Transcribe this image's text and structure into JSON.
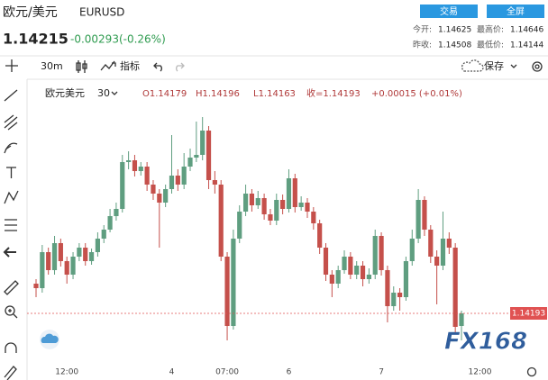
{
  "header": {
    "title": "欧元/美元",
    "symbol": "EURUSD",
    "buttons": [
      "交易",
      "全屏"
    ],
    "price": "1.14215",
    "change": "-0.00293(-0.26%)",
    "stats": [
      [
        "今开:",
        "1.14625",
        "最高价:",
        "1.14646"
      ],
      [
        "昨收:",
        "1.14508",
        "最低价:",
        "1.14144"
      ]
    ]
  },
  "toolbar": {
    "interval": "30m",
    "indicators": "指标",
    "save": "保存"
  },
  "legend": {
    "name": "欧元美元",
    "interval": "30",
    "open": "O1.14179",
    "high": "H1.14196",
    "low": "L1.14163",
    "close": "收=1.14193",
    "change": "+0.00015 (+0.01%)"
  },
  "watermark": "FX168",
  "chart_data": {
    "type": "candlestick",
    "categories": [
      null,
      null,
      null,
      null,
      null,
      "12:00",
      null,
      null,
      null,
      null,
      null,
      null,
      null,
      null,
      null,
      null,
      null,
      null,
      null,
      null,
      null,
      null,
      "4",
      null,
      null,
      null,
      null,
      null,
      null,
      null,
      null,
      "07:00",
      null,
      null,
      null,
      null,
      null,
      null,
      null,
      null,
      null,
      "6",
      null,
      null,
      null,
      null,
      null,
      null,
      null,
      null,
      null,
      null,
      null,
      null,
      null,
      null,
      "7",
      null,
      null,
      null,
      null,
      null,
      null,
      null,
      null,
      null,
      null,
      null,
      null,
      null,
      null,
      null,
      "12:00",
      null
    ],
    "open": [
      1.14226,
      1.14221,
      1.14261,
      1.14241,
      1.14271,
      1.14251,
      1.14236,
      1.14256,
      1.14266,
      1.14251,
      1.14261,
      1.14276,
      1.14286,
      1.14301,
      1.14309,
      1.14361,
      1.14363,
      1.14351,
      1.14356,
      1.14336,
      1.14326,
      1.14316,
      1.14331,
      1.14346,
      1.14336,
      1.14356,
      1.14366,
      1.14369,
      1.14396,
      1.14341,
      1.14336,
      1.14256,
      1.14179,
      1.14276,
      1.14306,
      1.14326,
      1.14313,
      1.14321,
      1.14303,
      1.14296,
      1.14319,
      1.14309,
      1.14343,
      1.14311,
      1.14316,
      1.14306,
      1.14293,
      1.14266,
      1.14236,
      1.14226,
      1.14241,
      1.14256,
      1.14236,
      1.14246,
      1.14231,
      1.14236,
      1.14279,
      1.14241,
      1.14201,
      1.14216,
      1.14211,
      1.14251,
      1.14276,
      1.14319,
      1.14286,
      1.14256,
      1.14246,
      1.14276,
      1.14266,
      1.14179,
      null,
      null,
      null,
      null
    ],
    "high": [
      1.14231,
      1.14269,
      1.14266,
      1.14279,
      1.14276,
      1.14256,
      1.14261,
      1.14271,
      1.14271,
      1.14265,
      1.14283,
      1.14291,
      1.14309,
      1.14316,
      1.14369,
      1.14373,
      1.14369,
      1.14361,
      1.14361,
      1.14341,
      1.14331,
      1.14336,
      1.14391,
      1.14353,
      1.14371,
      1.14376,
      1.14406,
      1.14411,
      1.14401,
      1.14351,
      1.14341,
      1.14261,
      1.14286,
      1.14313,
      1.14336,
      1.14331,
      1.14329,
      1.14326,
      1.14309,
      1.14326,
      1.14325,
      1.14353,
      1.14348,
      1.14323,
      1.14321,
      1.14311,
      1.14297,
      1.14271,
      1.14241,
      1.14246,
      1.14263,
      1.14261,
      1.14251,
      1.14251,
      1.14243,
      1.14286,
      1.14283,
      1.14246,
      1.14223,
      1.14221,
      1.14256,
      1.14286,
      1.14331,
      1.14323,
      1.14291,
      1.14263,
      1.14306,
      1.14283,
      1.14271,
      1.14196,
      null,
      null,
      null,
      null
    ],
    "low": [
      1.14211,
      1.14216,
      1.14236,
      1.14236,
      1.14245,
      1.14226,
      1.14231,
      1.14251,
      1.14246,
      1.14247,
      1.14256,
      1.14271,
      1.14283,
      1.14296,
      1.14305,
      1.14353,
      1.14345,
      1.14346,
      1.14329,
      1.14319,
      1.14266,
      1.14311,
      1.14326,
      1.14329,
      1.14331,
      1.14351,
      1.14361,
      1.14363,
      1.14331,
      1.14326,
      1.14251,
      1.14163,
      1.14175,
      1.14271,
      1.14301,
      1.14306,
      1.14309,
      1.14297,
      1.14291,
      1.14291,
      1.14303,
      1.14305,
      1.14305,
      1.14307,
      1.14299,
      1.14286,
      1.14259,
      1.14229,
      1.14211,
      1.14221,
      1.14237,
      1.14231,
      1.14231,
      1.14223,
      1.14226,
      1.14231,
      1.14235,
      1.14183,
      1.14196,
      1.14196,
      1.14207,
      1.14246,
      1.14271,
      1.14279,
      1.14249,
      1.14203,
      1.14241,
      1.14259,
      1.14172,
      1.14163,
      null,
      null,
      null,
      null
    ],
    "close": [
      1.14221,
      1.14261,
      1.14241,
      1.14271,
      1.14251,
      1.14236,
      1.14256,
      1.14266,
      1.14251,
      1.14261,
      1.14276,
      1.14286,
      1.14301,
      1.14309,
      1.14361,
      1.14363,
      1.14351,
      1.14356,
      1.14336,
      1.14326,
      1.14316,
      1.14331,
      1.14346,
      1.14336,
      1.14356,
      1.14366,
      1.14369,
      1.14396,
      1.14341,
      1.14336,
      1.14256,
      1.14179,
      1.14276,
      1.14306,
      1.14326,
      1.14313,
      1.14321,
      1.14303,
      1.14296,
      1.14319,
      1.14309,
      1.14343,
      1.14311,
      1.14316,
      1.14306,
      1.14293,
      1.14266,
      1.14236,
      1.14226,
      1.14241,
      1.14256,
      1.14236,
      1.14246,
      1.14231,
      1.14236,
      1.14279,
      1.14241,
      1.14201,
      1.14216,
      1.14211,
      1.14251,
      1.14276,
      1.14319,
      1.14286,
      1.14256,
      1.14246,
      1.14276,
      1.14266,
      1.14178,
      1.14193,
      null,
      null,
      null,
      null
    ],
    "up_color": "#5f9e80",
    "down_color": "#c5504b",
    "ylim": [
      1.14141,
      1.14451
    ],
    "last_price": 1.14193,
    "last_price_color": "#e05252"
  }
}
